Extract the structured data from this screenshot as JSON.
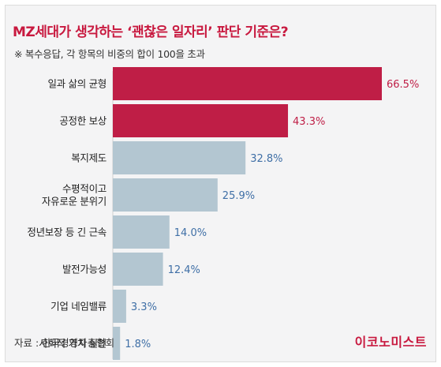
{
  "header": {
    "title": "MZ세대가 생각하는 ‘괜찮은 일자리’ 판단 기준은?",
    "note": "※ 복수응답, 각 항목의 비중의 합이 100을 초과"
  },
  "footer": {
    "source": "자료 : 한국경영자총협회",
    "logo": "이코노미스트"
  },
  "colors": {
    "highlight": "#bf1e46",
    "normal": "#b3c6d1",
    "highlight_text": "#bf1e46",
    "normal_text": "#3f6fa6"
  },
  "chart_data": {
    "type": "bar",
    "orientation": "horizontal",
    "categories": [
      [
        "일과 삶의 균형"
      ],
      [
        "공정한 보상"
      ],
      [
        "복지제도"
      ],
      [
        "수평적이고",
        "자유로운 분위기"
      ],
      [
        "정년보장 등 긴 근속"
      ],
      [
        "발전가능성"
      ],
      [
        "기업 네임밸류"
      ],
      [
        "사회적 가치 실현"
      ]
    ],
    "values": [
      66.5,
      43.3,
      32.8,
      25.9,
      14.0,
      12.4,
      3.3,
      1.8
    ],
    "value_labels": [
      "66.5%",
      "43.3%",
      "32.8%",
      "25.9%",
      "14.0%",
      "12.4%",
      "3.3%",
      "1.8%"
    ],
    "highlighted": [
      true,
      true,
      false,
      false,
      false,
      false,
      false,
      false
    ],
    "xlim": [
      0,
      66.5
    ],
    "grid": false,
    "legend": "none"
  }
}
